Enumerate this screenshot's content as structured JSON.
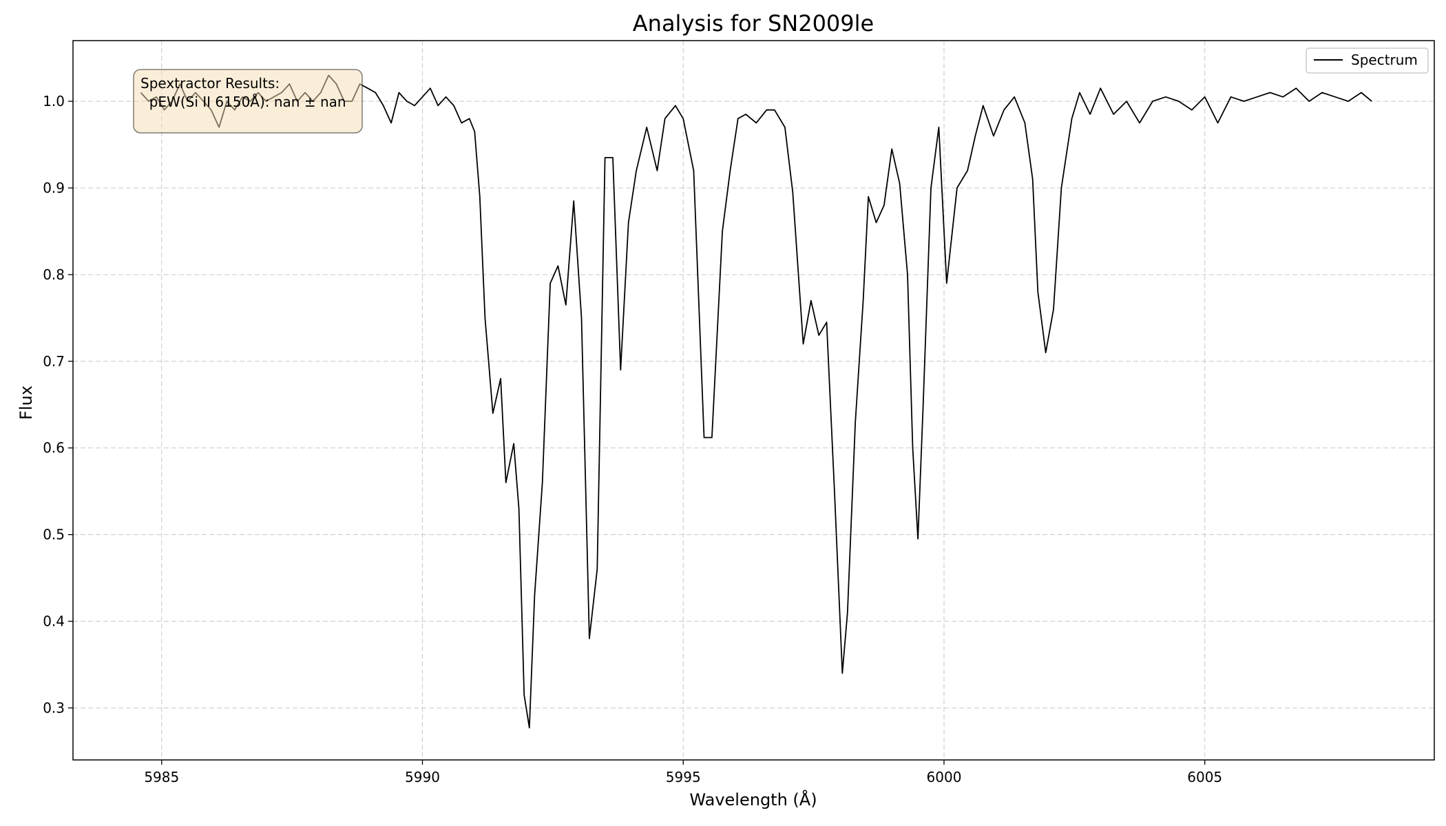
{
  "chart_data": {
    "type": "line",
    "title": "Analysis for SN2009le",
    "xlabel": "Wavelength (Å)",
    "ylabel": "Flux",
    "xlim": [
      5983.3,
      6009.4
    ],
    "ylim": [
      0.24,
      1.07
    ],
    "xticks": [
      5985,
      5990,
      5995,
      6000,
      6005
    ],
    "yticks": [
      0.3,
      0.4,
      0.5,
      0.6,
      0.7,
      0.8,
      0.9,
      1.0
    ],
    "xtick_labels": [
      "5985",
      "5990",
      "5995",
      "6000",
      "6005"
    ],
    "ytick_labels": [
      "0.3",
      "0.4",
      "0.5",
      "0.6",
      "0.7",
      "0.8",
      "0.9",
      "1.0"
    ],
    "grid": true,
    "legend_position": "upper right",
    "annotation": {
      "lines": [
        "Spextractor Results:",
        "  pEW(Si II 6150Å): nan ± nan"
      ]
    },
    "series": [
      {
        "name": "Spectrum",
        "color": "#000000",
        "x": [
          5984.6,
          5984.75,
          5984.9,
          5985.05,
          5985.2,
          5985.35,
          5985.5,
          5985.65,
          5985.8,
          5985.95,
          5986.1,
          5986.25,
          5986.4,
          5986.55,
          5986.7,
          5986.85,
          5987.0,
          5987.15,
          5987.3,
          5987.45,
          5987.6,
          5987.75,
          5987.9,
          5988.05,
          5988.2,
          5988.35,
          5988.5,
          5988.65,
          5988.8,
          5988.95,
          5989.1,
          5989.25,
          5989.4,
          5989.55,
          5989.7,
          5989.85,
          5990.0,
          5990.15,
          5990.3,
          5990.45,
          5990.6,
          5990.75,
          5990.9,
          5991.0,
          5991.1,
          5991.2,
          5991.35,
          5991.5,
          5991.6,
          5991.75,
          5991.85,
          5991.95,
          5992.05,
          5992.15,
          5992.3,
          5992.45,
          5992.6,
          5992.75,
          5992.9,
          5993.05,
          5993.2,
          5993.35,
          5993.5,
          5993.65,
          5993.8,
          5993.95,
          5994.1,
          5994.3,
          5994.5,
          5994.65,
          5994.85,
          5995.0,
          5995.2,
          5995.4,
          5995.55,
          5995.75,
          5995.9,
          5996.05,
          5996.2,
          5996.4,
          5996.6,
          5996.75,
          5996.95,
          5997.1,
          5997.3,
          5997.45,
          5997.6,
          5997.75,
          5997.9,
          5998.05,
          5998.15,
          5998.3,
          5998.45,
          5998.55,
          5998.7,
          5998.85,
          5999.0,
          5999.15,
          5999.3,
          5999.4,
          5999.5,
          5999.6,
          5999.75,
          5999.9,
          6000.05,
          6000.25,
          6000.45,
          6000.6,
          6000.75,
          6000.95,
          6001.15,
          6001.35,
          6001.55,
          6001.7,
          6001.8,
          6001.95,
          6002.1,
          6002.25,
          6002.45,
          6002.6,
          6002.8,
          6003.0,
          6003.25,
          6003.5,
          6003.75,
          6004.0,
          6004.25,
          6004.5,
          6004.75,
          6005.0,
          6005.25,
          6005.5,
          6005.75,
          6006.0,
          6006.25,
          6006.5,
          6006.75,
          6007.0,
          6007.25,
          6007.5,
          6007.75,
          6008.0,
          6008.2
        ],
        "y": [
          1.01,
          1.0,
          1.005,
          0.99,
          1.0,
          1.02,
          1.0,
          1.01,
          1.0,
          0.99,
          0.97,
          1.0,
          0.99,
          1.005,
          1.0,
          1.01,
          1.0,
          1.005,
          1.01,
          1.02,
          1.0,
          1.01,
          1.0,
          1.01,
          1.03,
          1.02,
          1.0,
          1.0,
          1.02,
          1.015,
          1.01,
          0.995,
          0.975,
          1.01,
          1.0,
          0.995,
          1.005,
          1.015,
          0.995,
          1.005,
          0.995,
          0.975,
          0.98,
          0.965,
          0.89,
          0.75,
          0.64,
          0.68,
          0.56,
          0.605,
          0.53,
          0.315,
          0.277,
          0.43,
          0.56,
          0.79,
          0.81,
          0.765,
          0.885,
          0.75,
          0.38,
          0.46,
          0.935,
          0.935,
          0.69,
          0.86,
          0.92,
          0.97,
          0.92,
          0.98,
          0.995,
          0.98,
          0.92,
          0.612,
          0.612,
          0.85,
          0.92,
          0.98,
          0.985,
          0.975,
          0.99,
          0.99,
          0.97,
          0.895,
          0.72,
          0.77,
          0.73,
          0.745,
          0.55,
          0.34,
          0.41,
          0.63,
          0.77,
          0.89,
          0.86,
          0.88,
          0.945,
          0.905,
          0.8,
          0.6,
          0.495,
          0.65,
          0.9,
          0.97,
          0.79,
          0.9,
          0.92,
          0.96,
          0.995,
          0.96,
          0.99,
          1.005,
          0.975,
          0.91,
          0.78,
          0.71,
          0.76,
          0.9,
          0.98,
          1.01,
          0.985,
          1.015,
          0.985,
          1.0,
          0.975,
          1.0,
          1.005,
          1.0,
          0.99,
          1.005,
          0.975,
          1.005,
          1.0,
          1.005,
          1.01,
          1.005,
          1.015,
          1.0,
          1.01,
          1.005,
          1.0,
          1.01,
          1.0
        ]
      }
    ]
  }
}
